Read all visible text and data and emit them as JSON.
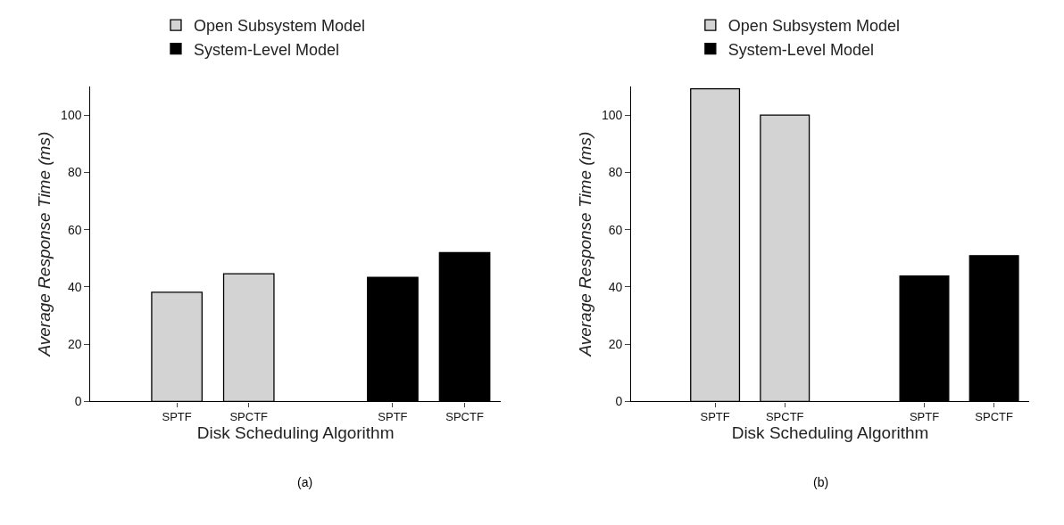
{
  "chart_data": [
    {
      "type": "bar",
      "categories": [
        "SPTF",
        "SPCTF",
        null,
        "SPTF",
        "SPCTF"
      ],
      "series": [
        {
          "name": "Open Subsystem Model",
          "color": "#d3d3d3",
          "values": [
            38.1,
            44.6,
            null,
            null,
            null
          ]
        },
        {
          "name": "System-Level Model",
          "color": "#000000",
          "values": [
            null,
            null,
            null,
            43.3,
            52.0
          ]
        }
      ],
      "xlabel": "Disk Scheduling Algorithm",
      "ylabel": "Average Response Time (ms)",
      "ylim": [
        0,
        110
      ],
      "yticks": [
        0,
        20,
        40,
        60,
        80,
        100
      ],
      "legend": "top",
      "annotations": [
        "(a)"
      ]
    },
    {
      "type": "bar",
      "categories": [
        "SPTF",
        "SPCTF",
        null,
        "SPTF",
        "SPCTF"
      ],
      "series": [
        {
          "name": "Open Subsystem Model",
          "color": "#d3d3d3",
          "values": [
            109.2,
            100.0,
            null,
            null,
            null
          ]
        },
        {
          "name": "System-Level Model",
          "color": "#000000",
          "values": [
            null,
            null,
            null,
            43.8,
            50.9
          ]
        }
      ],
      "xlabel": "Disk Scheduling Algorithm",
      "ylabel": "Average Response Time (ms)",
      "ylim": [
        0,
        110
      ],
      "yticks": [
        0,
        20,
        40,
        60,
        80,
        100
      ],
      "legend": "top",
      "annotations": [
        "(b)"
      ]
    }
  ]
}
